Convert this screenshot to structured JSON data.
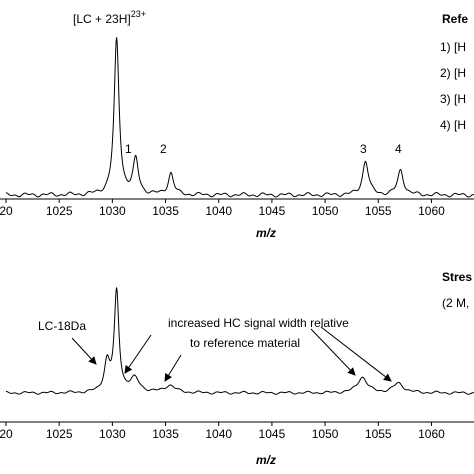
{
  "chart_data": [
    {
      "type": "line",
      "panel": "top",
      "xlabel": "m/z",
      "ylabel": "",
      "xlim": [
        1020,
        1064
      ],
      "x_ticks": [
        1020,
        1025,
        1030,
        1035,
        1040,
        1045,
        1050,
        1055,
        1060
      ],
      "tick_labels": [
        "20",
        "1025",
        "1030",
        "1035",
        "1040",
        "1045",
        "1050",
        "1055",
        "1060"
      ],
      "legend_title": "Refe",
      "legend_items": [
        "1) [H",
        "2) [H",
        "3) [H",
        "4) [H"
      ],
      "peaks": [
        {
          "x": 1030.4,
          "height": 1.0,
          "width": 0.28,
          "label": "[LC + 23H]",
          "label_sup": "23+"
        },
        {
          "x": 1032.2,
          "height": 0.22,
          "width": 0.3,
          "label": "1"
        },
        {
          "x": 1035.5,
          "height": 0.14,
          "width": 0.3,
          "label": "2"
        },
        {
          "x": 1053.8,
          "height": 0.22,
          "width": 0.33,
          "label": "3"
        },
        {
          "x": 1057.1,
          "height": 0.16,
          "width": 0.33,
          "label": "4"
        }
      ]
    },
    {
      "type": "line",
      "panel": "bottom",
      "xlabel": "m/z",
      "ylabel": "",
      "xlim": [
        1020,
        1064
      ],
      "x_ticks": [
        1020,
        1025,
        1030,
        1035,
        1040,
        1045,
        1050,
        1055,
        1060
      ],
      "tick_labels": [
        "20",
        "1025",
        "1030",
        "1035",
        "1040",
        "1045",
        "1050",
        "1055",
        "1060"
      ],
      "legend_title": "Stres",
      "legend_subtitle": "(2 M,",
      "peaks": [
        {
          "x": 1029.5,
          "height": 0.28,
          "width": 0.32
        },
        {
          "x": 1030.4,
          "height": 0.95,
          "width": 0.26
        },
        {
          "x": 1032.1,
          "height": 0.13,
          "width": 0.55
        },
        {
          "x": 1035.4,
          "height": 0.07,
          "width": 0.6
        },
        {
          "x": 1053.5,
          "height": 0.15,
          "width": 0.55
        },
        {
          "x": 1056.9,
          "height": 0.09,
          "width": 0.6
        }
      ],
      "annotations": [
        {
          "text": "LC-18Da",
          "target_x": 1029.5
        },
        {
          "text": "increased HC signal width relative",
          "targets_x": [
            1032.1,
            1035.4,
            1053.5,
            1056.9
          ]
        },
        {
          "text": "to reference material"
        }
      ]
    }
  ]
}
